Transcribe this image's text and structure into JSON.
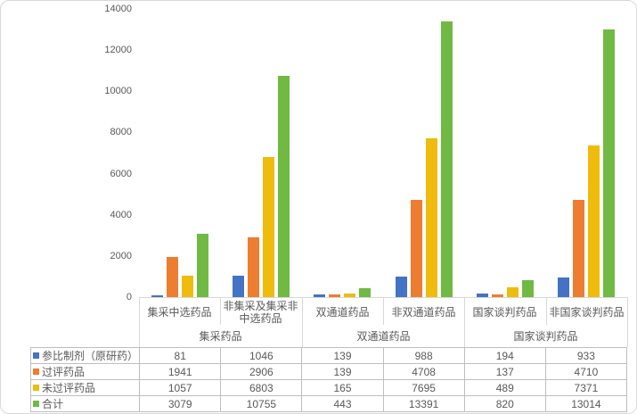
{
  "chart_data": {
    "type": "bar",
    "title": "",
    "xlabel": "",
    "ylabel": "",
    "ylim": [
      0,
      14000
    ],
    "y_ticks": [
      0,
      2000,
      4000,
      6000,
      8000,
      10000,
      12000,
      14000
    ],
    "grid": false,
    "legend_position": "data-table-rows-left",
    "data_table_shown": true,
    "categories": [
      "集采中选药品",
      "非集采及集采非中选药品",
      "双通道药品",
      "非双通道药品",
      "国家谈判药品",
      "非国家谈判药品"
    ],
    "category_groups": [
      {
        "label": "集采药品",
        "span": 2
      },
      {
        "label": "双通道药品",
        "span": 2
      },
      {
        "label": "国家谈判药品",
        "span": 2
      }
    ],
    "series": [
      {
        "name": "参比制剂（原研药）",
        "color": "#4472C4",
        "values": [
          81,
          1046,
          139,
          988,
          194,
          933
        ]
      },
      {
        "name": "过评药品",
        "color": "#ED7D31",
        "values": [
          1941,
          2906,
          139,
          4708,
          137,
          4710
        ]
      },
      {
        "name": "未过评药品",
        "color": "#EFBC0D",
        "values": [
          1057,
          6803,
          165,
          7695,
          489,
          7371
        ]
      },
      {
        "name": "合计",
        "color": "#70BA44",
        "values": [
          3079,
          10755,
          443,
          13391,
          820,
          13014
        ]
      }
    ]
  },
  "colors": {
    "axis_line": "#D9D9D9",
    "table_border": "#BFBFBF",
    "text": "#595959",
    "background": "#FFFFFF"
  }
}
